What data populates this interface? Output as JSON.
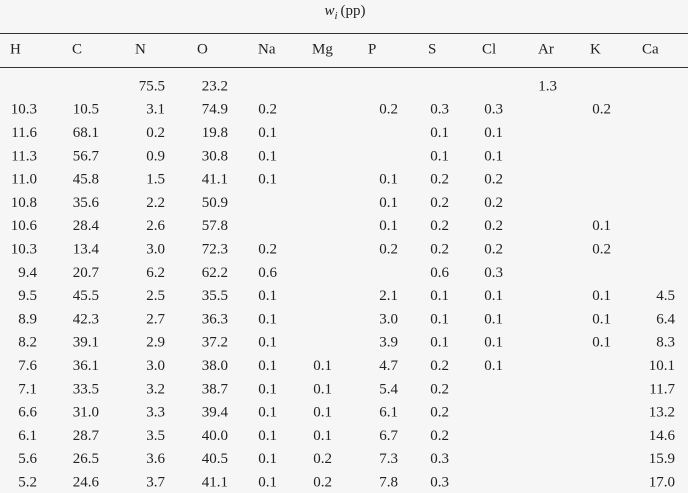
{
  "header": {
    "symbol": "w",
    "subscript": "i",
    "unit": "(pp)"
  },
  "table": {
    "columns": [
      "H",
      "C",
      "N",
      "O",
      "Na",
      "Mg",
      "P",
      "S",
      "Cl",
      "Ar",
      "K",
      "Ca"
    ],
    "rows": [
      [
        null,
        null,
        "75.5",
        "23.2",
        null,
        null,
        null,
        null,
        null,
        "1.3",
        null,
        null
      ],
      [
        "10.3",
        "10.5",
        "3.1",
        "74.9",
        "0.2",
        null,
        "0.2",
        "0.3",
        "0.3",
        null,
        "0.2",
        null
      ],
      [
        "11.6",
        "68.1",
        "0.2",
        "19.8",
        "0.1",
        null,
        null,
        "0.1",
        "0.1",
        null,
        null,
        null
      ],
      [
        "11.3",
        "56.7",
        "0.9",
        "30.8",
        "0.1",
        null,
        null,
        "0.1",
        "0.1",
        null,
        null,
        null
      ],
      [
        "11.0",
        "45.8",
        "1.5",
        "41.1",
        "0.1",
        null,
        "0.1",
        "0.2",
        "0.2",
        null,
        null,
        null
      ],
      [
        "10.8",
        "35.6",
        "2.2",
        "50.9",
        null,
        null,
        "0.1",
        "0.2",
        "0.2",
        null,
        null,
        null
      ],
      [
        "10.6",
        "28.4",
        "2.6",
        "57.8",
        null,
        null,
        "0.1",
        "0.2",
        "0.2",
        null,
        "0.1",
        null
      ],
      [
        "10.3",
        "13.4",
        "3.0",
        "72.3",
        "0.2",
        null,
        "0.2",
        "0.2",
        "0.2",
        null,
        "0.2",
        null
      ],
      [
        "9.4",
        "20.7",
        "6.2",
        "62.2",
        "0.6",
        null,
        null,
        "0.6",
        "0.3",
        null,
        null,
        null
      ],
      [
        "9.5",
        "45.5",
        "2.5",
        "35.5",
        "0.1",
        null,
        "2.1",
        "0.1",
        "0.1",
        null,
        "0.1",
        "4.5"
      ],
      [
        "8.9",
        "42.3",
        "2.7",
        "36.3",
        "0.1",
        null,
        "3.0",
        "0.1",
        "0.1",
        null,
        "0.1",
        "6.4"
      ],
      [
        "8.2",
        "39.1",
        "2.9",
        "37.2",
        "0.1",
        null,
        "3.9",
        "0.1",
        "0.1",
        null,
        "0.1",
        "8.3"
      ],
      [
        "7.6",
        "36.1",
        "3.0",
        "38.0",
        "0.1",
        "0.1",
        "4.7",
        "0.2",
        "0.1",
        null,
        null,
        "10.1"
      ],
      [
        "7.1",
        "33.5",
        "3.2",
        "38.7",
        "0.1",
        "0.1",
        "5.4",
        "0.2",
        null,
        null,
        null,
        "11.7"
      ],
      [
        "6.6",
        "31.0",
        "3.3",
        "39.4",
        "0.1",
        "0.1",
        "6.1",
        "0.2",
        null,
        null,
        null,
        "13.2"
      ],
      [
        "6.1",
        "28.7",
        "3.5",
        "40.0",
        "0.1",
        "0.1",
        "6.7",
        "0.2",
        null,
        null,
        null,
        "14.6"
      ],
      [
        "5.6",
        "26.5",
        "3.6",
        "40.5",
        "0.1",
        "0.2",
        "7.3",
        "0.3",
        null,
        null,
        null,
        "15.9"
      ],
      [
        "5.2",
        "24.6",
        "3.7",
        "41.1",
        "0.1",
        "0.2",
        "7.8",
        "0.3",
        null,
        null,
        null,
        "17.0"
      ]
    ]
  }
}
